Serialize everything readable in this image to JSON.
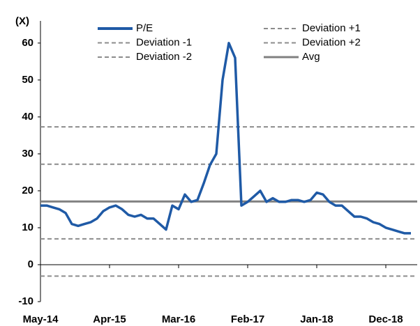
{
  "chart_data": {
    "type": "line",
    "y_axis_label": "(X)",
    "x": [
      "2014-05",
      "2014-06",
      "2014-07",
      "2014-08",
      "2014-09",
      "2014-10",
      "2014-11",
      "2014-12",
      "2015-01",
      "2015-02",
      "2015-03",
      "2015-04",
      "2015-05",
      "2015-06",
      "2015-07",
      "2015-08",
      "2015-09",
      "2015-10",
      "2015-11",
      "2015-12",
      "2016-01",
      "2016-02",
      "2016-03",
      "2016-04",
      "2016-05",
      "2016-06",
      "2016-07",
      "2016-08",
      "2016-09",
      "2016-10",
      "2016-11",
      "2016-12",
      "2017-01",
      "2017-02",
      "2017-03",
      "2017-04",
      "2017-05",
      "2017-06",
      "2017-07",
      "2017-08",
      "2017-09",
      "2017-10",
      "2017-11",
      "2017-12",
      "2018-01",
      "2018-02",
      "2018-03",
      "2018-04",
      "2018-05",
      "2018-06",
      "2018-07",
      "2018-08",
      "2018-09",
      "2018-10",
      "2018-11",
      "2018-12",
      "2019-01",
      "2019-02",
      "2019-03",
      "2019-04"
    ],
    "series": [
      {
        "name": "P/E",
        "color": "#1f5aa6",
        "values": [
          16,
          16,
          15.5,
          15,
          14,
          11,
          10.5,
          11,
          11.5,
          12.5,
          14.5,
          15.5,
          16,
          15,
          13.5,
          13,
          13.5,
          12.5,
          12.5,
          11,
          9.5,
          16,
          15,
          19,
          17,
          17.5,
          22,
          27,
          30,
          50,
          60,
          56,
          16,
          17,
          18.5,
          20,
          17,
          18,
          17,
          17,
          17.5,
          17.5,
          17,
          17.5,
          19.5,
          19,
          17,
          16,
          16,
          14.5,
          13,
          13,
          12.5,
          11.5,
          11,
          10,
          9.5,
          9,
          8.5,
          8.5
        ]
      }
    ],
    "reference_lines": [
      {
        "name": "Deviation +1",
        "value": 27.2,
        "color": "#8c8c8c",
        "dashed": true
      },
      {
        "name": "Deviation -1",
        "value": 7.0,
        "color": "#8c8c8c",
        "dashed": true
      },
      {
        "name": "Deviation +2",
        "value": 37.3,
        "color": "#8c8c8c",
        "dashed": true
      },
      {
        "name": "Deviation -2",
        "value": -3.1,
        "color": "#8c8c8c",
        "dashed": true
      },
      {
        "name": "Avg",
        "value": 17.1,
        "color": "#808080",
        "dashed": false
      }
    ],
    "xlim": [
      "2014-05",
      "2019-05"
    ],
    "xticks": [
      {
        "value": "2014-05",
        "label": "May-14"
      },
      {
        "value": "2015-04",
        "label": "Apr-15"
      },
      {
        "value": "2016-03",
        "label": "Mar-16"
      },
      {
        "value": "2017-02",
        "label": "Feb-17"
      },
      {
        "value": "2018-01",
        "label": "Jan-18"
      },
      {
        "value": "2018-12",
        "label": "Dec-18"
      }
    ],
    "ylim": [
      -10,
      66
    ],
    "yticks": [
      -10,
      0,
      10,
      20,
      30,
      40,
      50,
      60
    ]
  }
}
